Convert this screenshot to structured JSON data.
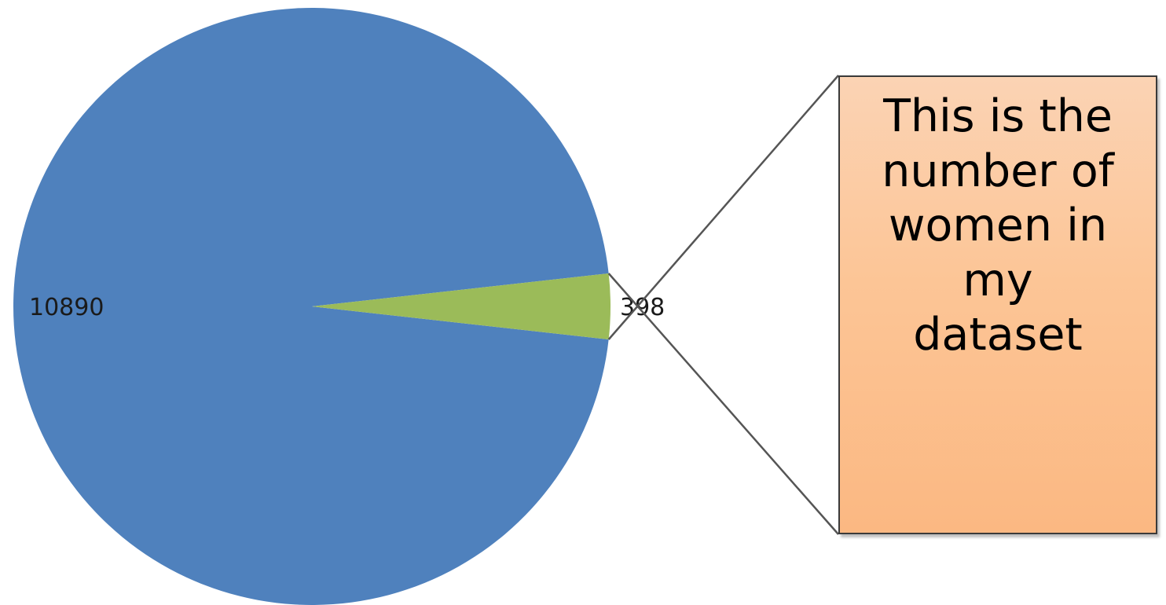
{
  "chart_data": {
    "type": "pie",
    "categories": [
      "",
      ""
    ],
    "values": [
      10890,
      398
    ],
    "data_labels": [
      "10890",
      "398"
    ],
    "colors": [
      "#4f81bd",
      "#9bbb59"
    ],
    "title": "",
    "legend": "none"
  },
  "callout": {
    "text": "This is the\nnumber of\nwomen in\nmy\ndataset",
    "fill_color": "#fcc596",
    "border_color": "#3a3a3a"
  }
}
